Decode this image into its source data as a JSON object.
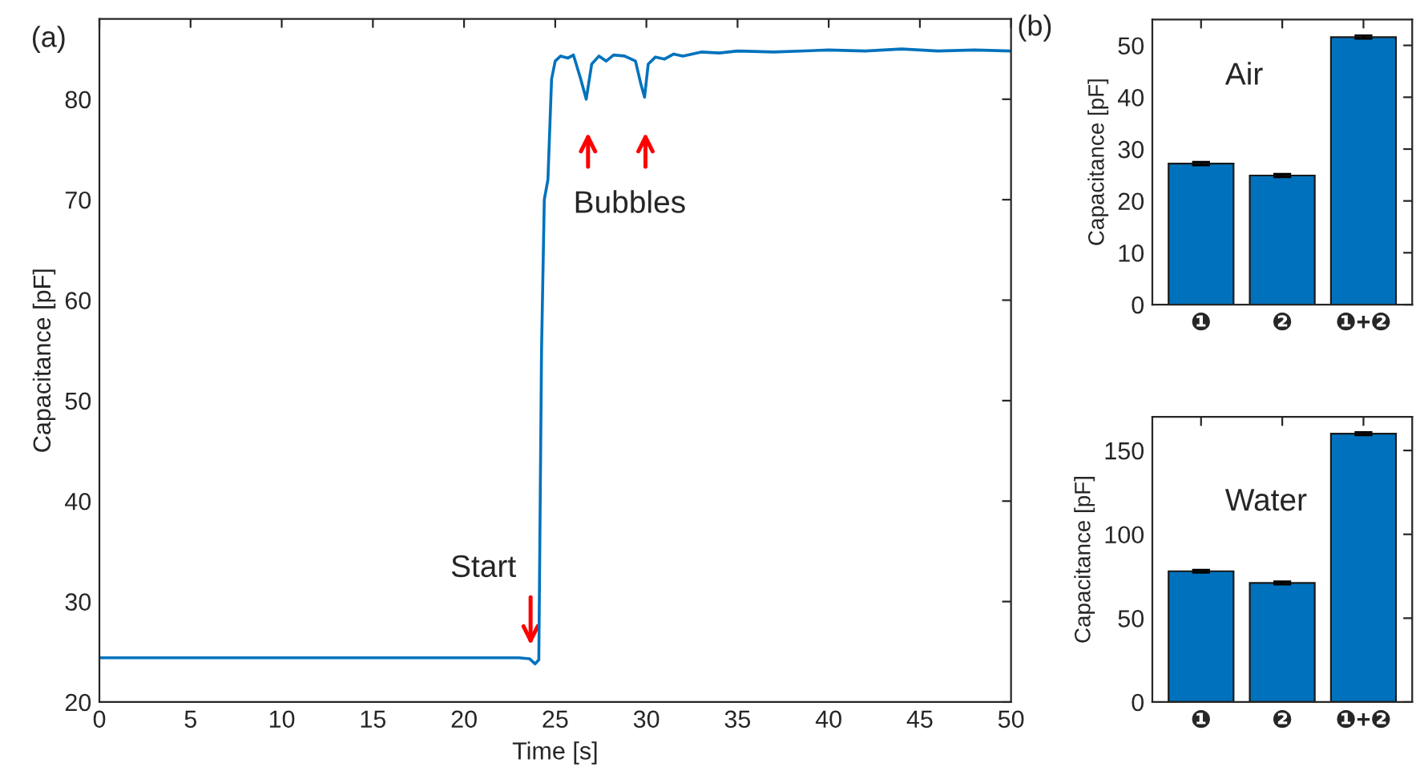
{
  "chart_data": [
    {
      "type": "line",
      "xlabel": "Time [s]",
      "ylabel": "Capacitance [pF]",
      "xlim": [
        0,
        50
      ],
      "ylim": [
        20,
        88
      ],
      "xticks": [
        0,
        5,
        10,
        15,
        20,
        25,
        30,
        35,
        40,
        45,
        50
      ],
      "yticks": [
        20,
        30,
        40,
        50,
        60,
        70,
        80
      ],
      "grid": false,
      "legend": false,
      "marker": "none",
      "line_style": "solid",
      "annotations": [
        "(a)",
        "Start",
        "Bubbles"
      ],
      "series": [
        {
          "color": "#0072bd",
          "x": [
            0,
            2,
            4,
            6,
            8,
            10,
            12,
            14,
            16,
            18,
            20,
            22,
            23.0,
            23.6,
            23.9,
            24.1,
            24.25,
            24.4,
            24.6,
            24.8,
            25.0,
            25.3,
            25.7,
            26.0,
            26.4,
            26.7,
            27.0,
            27.4,
            27.8,
            28.2,
            28.8,
            29.4,
            29.7,
            29.9,
            30.1,
            30.5,
            31,
            31.5,
            32,
            33,
            34,
            35,
            37,
            40,
            42,
            44,
            46,
            48,
            50
          ],
          "values": [
            24.4,
            24.4,
            24.4,
            24.4,
            24.4,
            24.4,
            24.4,
            24.4,
            24.4,
            24.4,
            24.4,
            24.4,
            24.4,
            24.3,
            23.8,
            24.2,
            55,
            70,
            72,
            82,
            83.8,
            84.3,
            84.1,
            84.4,
            82,
            80.0,
            83.5,
            84.3,
            83.8,
            84.4,
            84.3,
            83.8,
            81.5,
            80.2,
            83.5,
            84.2,
            84.0,
            84.5,
            84.3,
            84.7,
            84.6,
            84.8,
            84.7,
            84.9,
            84.8,
            85.0,
            84.8,
            84.9,
            84.8
          ]
        }
      ]
    },
    {
      "type": "bar",
      "ylabel": "Capacitance [pF]",
      "categories": [
        "❶",
        "❷",
        "❶+❷"
      ],
      "values": [
        27.2,
        24.9,
        51.6
      ],
      "errors": [
        0.3,
        0.3,
        0.3
      ],
      "color": "#0072bd",
      "ylim": [
        0,
        55
      ],
      "yticks": [
        0,
        10,
        20,
        30,
        40,
        50
      ],
      "grid": false,
      "legend": false,
      "annotations": [
        "(b)",
        "Air"
      ]
    },
    {
      "type": "bar",
      "ylabel": "Capacitance [pF]",
      "categories": [
        "❶",
        "❷",
        "❶+❷"
      ],
      "values": [
        78,
        71,
        160
      ],
      "errors": [
        0.8,
        0.8,
        0.8
      ],
      "color": "#0072bd",
      "ylim": [
        0,
        170
      ],
      "yticks": [
        0,
        50,
        100,
        150
      ],
      "grid": false,
      "legend": false,
      "annotations": [
        "Water"
      ]
    }
  ]
}
